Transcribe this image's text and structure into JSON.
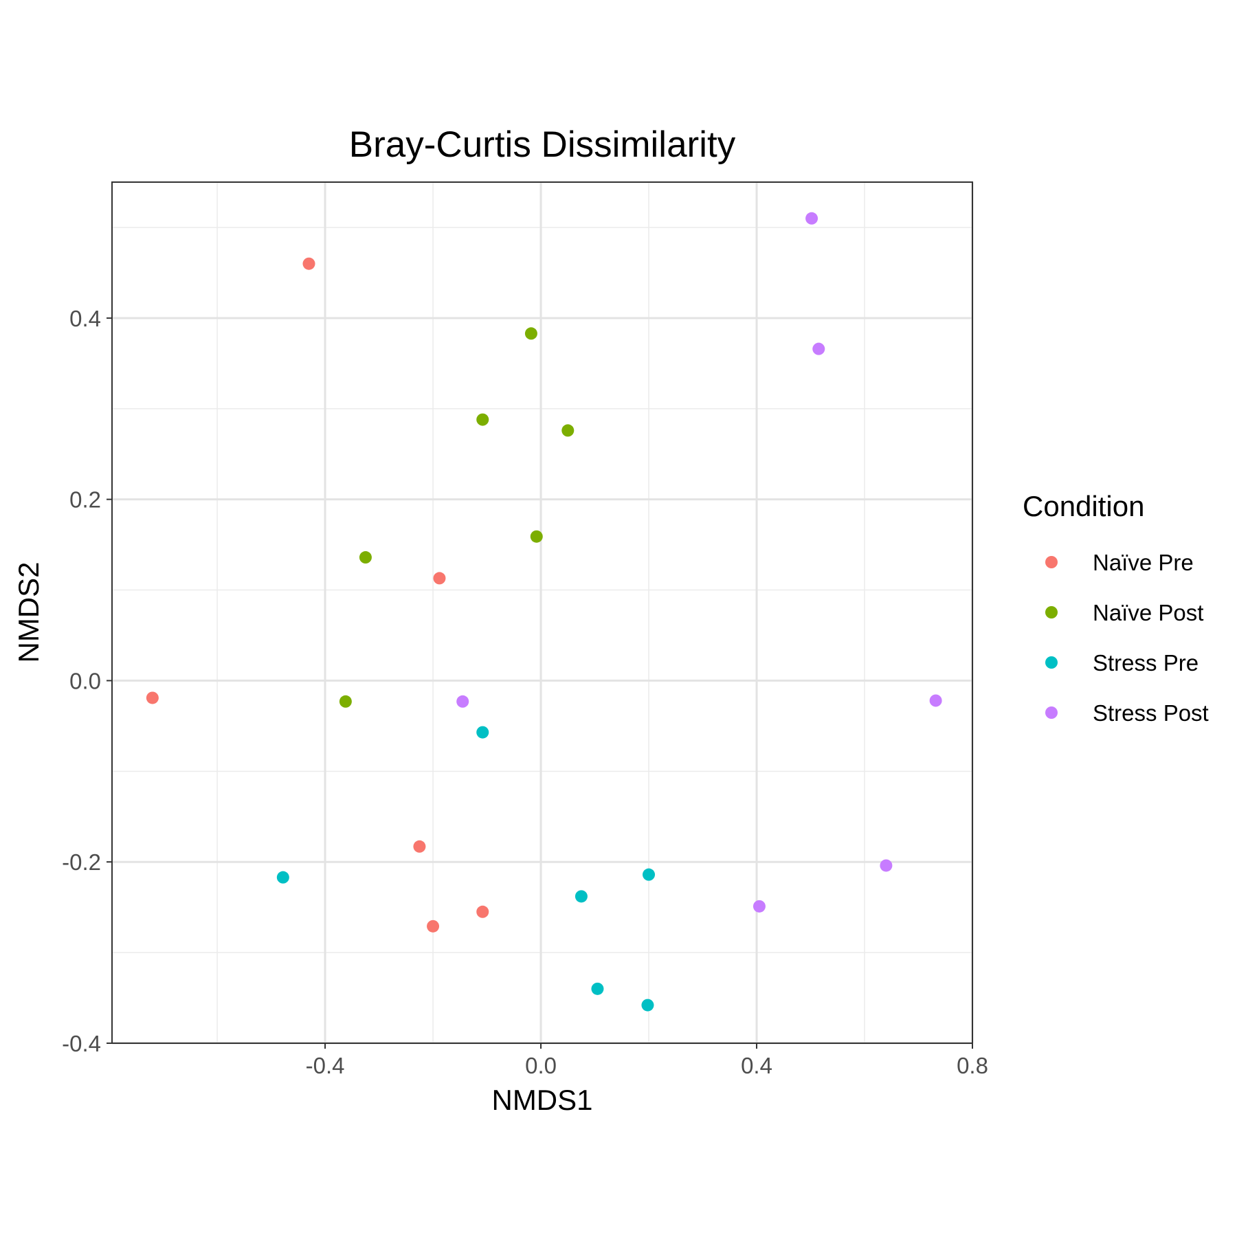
{
  "chart_data": {
    "type": "scatter",
    "title": "Bray-Curtis Dissimilarity",
    "xlabel": "NMDS1",
    "ylabel": "NMDS2",
    "xlim": [
      -0.795,
      0.8
    ],
    "ylim": [
      -0.4,
      0.55
    ],
    "x_ticks": [
      -0.4,
      0.0,
      0.4,
      0.8
    ],
    "x_tick_labels": [
      "-0.4",
      "0.0",
      "0.4",
      "0.8"
    ],
    "y_ticks": [
      -0.4,
      -0.2,
      0.0,
      0.2,
      0.4
    ],
    "y_tick_labels": [
      "-0.4",
      "-0.2",
      "0.0",
      "0.2",
      "0.4"
    ],
    "grid": true,
    "legend": {
      "title": "Condition",
      "placement": "right"
    },
    "series": [
      {
        "name": "Naïve Pre",
        "color": "#F8766D",
        "points": [
          [
            -0.72,
            -0.019
          ],
          [
            -0.43,
            0.46
          ],
          [
            -0.188,
            0.113
          ],
          [
            -0.225,
            -0.183
          ],
          [
            -0.2,
            -0.271
          ],
          [
            -0.108,
            -0.255
          ]
        ]
      },
      {
        "name": "Naïve Post",
        "color": "#7CAE00",
        "points": [
          [
            -0.018,
            0.383
          ],
          [
            -0.108,
            0.288
          ],
          [
            0.05,
            0.276
          ],
          [
            -0.008,
            0.159
          ],
          [
            -0.325,
            0.136
          ],
          [
            -0.362,
            -0.023
          ]
        ]
      },
      {
        "name": "Stress Pre",
        "color": "#00BFC4",
        "points": [
          [
            -0.108,
            -0.057
          ],
          [
            -0.478,
            -0.217
          ],
          [
            0.2,
            -0.214
          ],
          [
            0.075,
            -0.238
          ],
          [
            0.105,
            -0.34
          ],
          [
            0.198,
            -0.358
          ]
        ]
      },
      {
        "name": "Stress Post",
        "color": "#C77CFF",
        "points": [
          [
            0.502,
            0.51
          ],
          [
            0.515,
            0.366
          ],
          [
            -0.145,
            -0.023
          ],
          [
            0.732,
            -0.022
          ],
          [
            0.64,
            -0.204
          ],
          [
            0.405,
            -0.249
          ]
        ]
      }
    ]
  }
}
